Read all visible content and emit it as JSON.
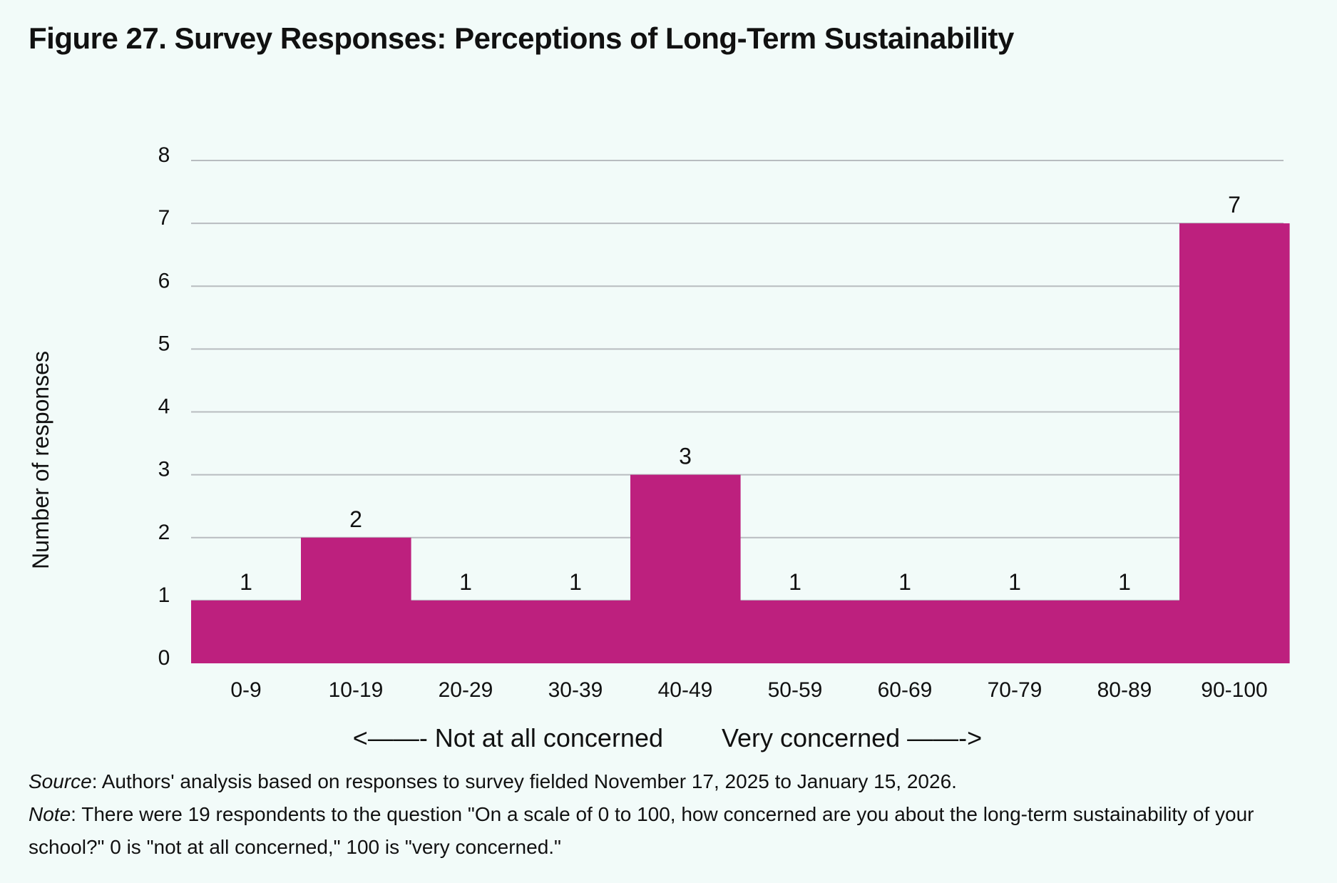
{
  "figure": {
    "title": "Figure 27. Survey Responses: Perceptions of Long-Term Sustainability",
    "source_label": "Source",
    "source_text": ": Authors' analysis based on responses to survey fielded November 17, 2025 to January 15, 2026.",
    "note_label": "Note",
    "note_text": ": There were 19 respondents to the question \"On a scale of 0 to 100, how concerned are you about the long-term sustainability of your school?\" 0 is \"not at all concerned,\" 100 is \"very concerned.\""
  },
  "chart_data": {
    "type": "bar",
    "categories": [
      "0-9",
      "10-19",
      "20-29",
      "30-39",
      "40-49",
      "50-59",
      "60-69",
      "70-79",
      "80-89",
      "90-100"
    ],
    "values": [
      1,
      2,
      1,
      1,
      3,
      1,
      1,
      1,
      1,
      7
    ],
    "ylabel": "Number of responses",
    "xlabel_left": "<——- Not at all concerned",
    "xlabel_right": "Very concerned ——->",
    "ylim": [
      0,
      8
    ],
    "yticks": [
      0,
      1,
      2,
      3,
      4,
      5,
      6,
      7,
      8
    ],
    "grid": true,
    "data_labels": true,
    "bar_color": "#bd207e",
    "grid_color": "#b8bcc0"
  }
}
